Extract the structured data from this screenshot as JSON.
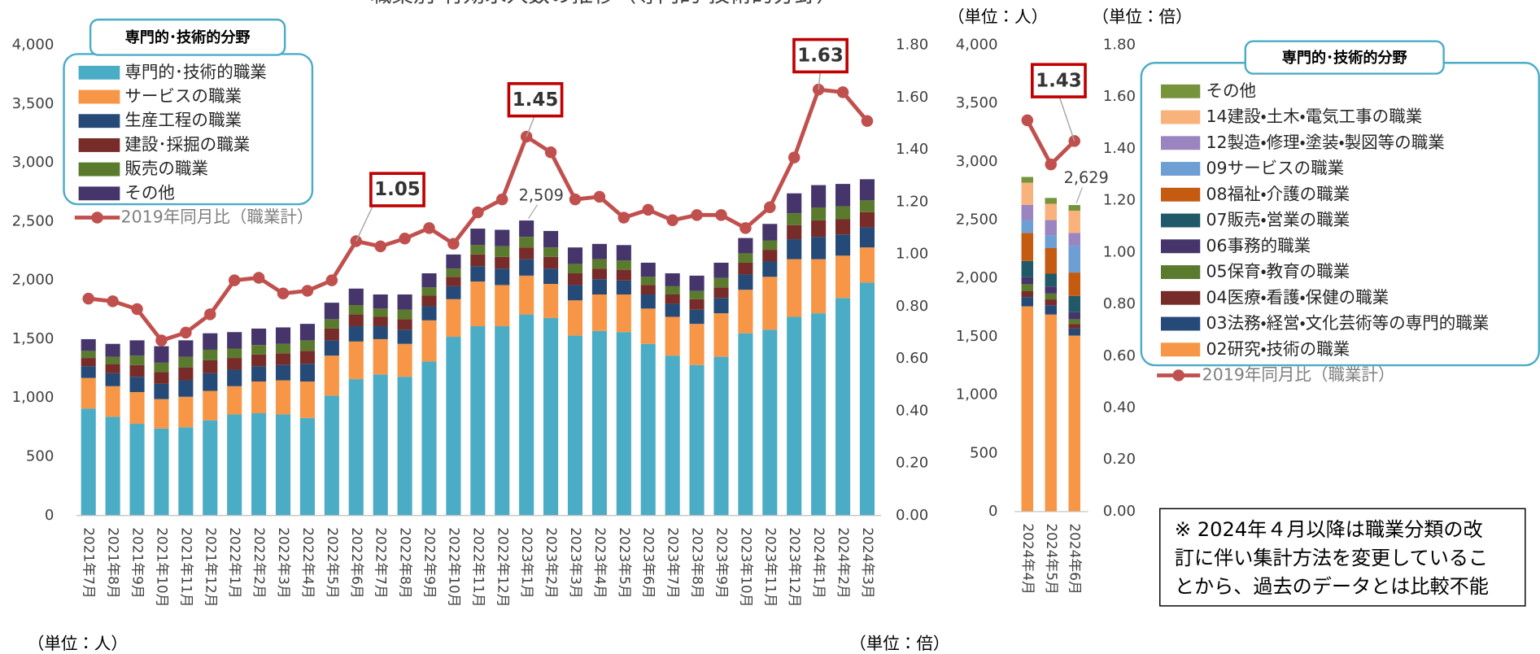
{
  "chart_data": [
    {
      "type": "bar",
      "stacked": true,
      "title": "職業別 有効求人数の推移（専門的・技術的分野）",
      "ylabel": "（単位：人）",
      "y2label": "（単位：倍）",
      "legend_title": "専門的･技術的分野",
      "categories": [
        "2021年7月",
        "2021年8月",
        "2021年9月",
        "2021年10月",
        "2021年11月",
        "2021年12月",
        "2022年1月",
        "2022年2月",
        "2022年3月",
        "2022年4月",
        "2022年5月",
        "2022年6月",
        "2022年7月",
        "2022年8月",
        "2022年9月",
        "2022年10月",
        "2022年11月",
        "2022年12月",
        "2023年1月",
        "2023年2月",
        "2023年3月",
        "2023年4月",
        "2023年5月",
        "2023年6月",
        "2023年7月",
        "2023年8月",
        "2023年9月",
        "2023年10月",
        "2023年11月",
        "2023年12月",
        "2024年1月",
        "2024年2月",
        "2024年3月"
      ],
      "series": [
        {
          "name": "専門的･技術的職業",
          "color": "#4bacc6",
          "values": [
            910,
            840,
            780,
            740,
            750,
            810,
            860,
            870,
            860,
            830,
            1020,
            1160,
            1200,
            1180,
            1310,
            1520,
            1610,
            1610,
            1710,
            1680,
            1530,
            1570,
            1560,
            1460,
            1360,
            1280,
            1350,
            1550,
            1580,
            1690,
            1720,
            1850,
            1980
          ]
        },
        {
          "name": "サービスの職業",
          "color": "#f79646",
          "values": [
            260,
            260,
            270,
            250,
            260,
            250,
            240,
            270,
            290,
            310,
            340,
            320,
            300,
            280,
            350,
            320,
            380,
            350,
            330,
            290,
            300,
            310,
            320,
            300,
            330,
            350,
            370,
            370,
            450,
            490,
            460,
            360,
            300
          ]
        },
        {
          "name": "生産工程の職業",
          "color": "#254a78",
          "values": [
            100,
            110,
            130,
            130,
            140,
            150,
            140,
            130,
            130,
            150,
            130,
            130,
            110,
            120,
            120,
            110,
            130,
            140,
            140,
            130,
            130,
            130,
            120,
            120,
            110,
            120,
            130,
            130,
            130,
            170,
            190,
            180,
            170
          ]
        },
        {
          "name": "建設･採掘の職業",
          "color": "#772c2a",
          "values": [
            70,
            80,
            100,
            100,
            110,
            110,
            100,
            100,
            100,
            110,
            100,
            100,
            80,
            90,
            90,
            80,
            100,
            100,
            100,
            100,
            100,
            90,
            90,
            80,
            80,
            90,
            90,
            100,
            100,
            120,
            140,
            130,
            130
          ]
        },
        {
          "name": "販売の職業",
          "color": "#5a7b2e",
          "values": [
            60,
            60,
            80,
            80,
            90,
            90,
            80,
            80,
            80,
            90,
            80,
            80,
            70,
            80,
            70,
            70,
            80,
            90,
            90,
            80,
            80,
            80,
            80,
            70,
            70,
            70,
            80,
            80,
            80,
            100,
            110,
            110,
            100
          ]
        },
        {
          "name": "その他",
          "color": "#46356a",
          "values": [
            100,
            110,
            130,
            140,
            140,
            140,
            140,
            140,
            140,
            140,
            140,
            140,
            120,
            130,
            120,
            120,
            140,
            140,
            139,
            140,
            140,
            130,
            130,
            120,
            110,
            130,
            130,
            130,
            140,
            170,
            190,
            190,
            180
          ]
        },
        {
          "name": "2019年同月比（職業計）",
          "type": "line",
          "axis": "y2",
          "color": "#c0504d",
          "values": [
            0.83,
            0.82,
            0.79,
            0.67,
            0.7,
            0.77,
            0.9,
            0.91,
            0.85,
            0.86,
            0.9,
            1.05,
            1.03,
            1.06,
            1.1,
            1.04,
            1.16,
            1.21,
            1.45,
            1.39,
            1.21,
            1.22,
            1.14,
            1.17,
            1.13,
            1.15,
            1.15,
            1.1,
            1.18,
            1.37,
            1.63,
            1.62,
            1.51
          ],
          "value_labels": [
            null,
            null,
            null,
            null,
            null,
            null,
            null,
            null,
            null,
            null,
            null,
            "1.05",
            null,
            null,
            null,
            null,
            null,
            null,
            "1.45",
            null,
            null,
            null,
            null,
            null,
            null,
            null,
            null,
            null,
            null,
            null,
            "1.63",
            null,
            null
          ]
        }
      ],
      "annotations": [
        {
          "category": "2023年1月",
          "label": "2,509",
          "value": 2509
        }
      ],
      "ylim": [
        0,
        4000
      ],
      "yticks": [
        0,
        {
          "value": 500,
          "label": "500"
        },
        {
          "value": 1000,
          "label": "1,000"
        },
        {
          "value": 1500,
          "label": "1,500"
        },
        {
          "value": 2000,
          "label": "2,000"
        },
        {
          "value": 2500,
          "label": "2,500"
        },
        {
          "value": 3000,
          "label": "3,000"
        },
        {
          "value": 3500,
          "label": "3,500"
        },
        {
          "value": 4000,
          "label": "4,000"
        }
      ],
      "y2lim": [
        0,
        1.8
      ],
      "y2ticks": [
        {
          "value": 0,
          "label": "0.00"
        },
        {
          "value": 0.2,
          "label": "0.20"
        },
        {
          "value": 0.4,
          "label": "0.40"
        },
        {
          "value": 0.6,
          "label": "0.60"
        },
        {
          "value": 0.8,
          "label": "0.80"
        },
        {
          "value": 1,
          "label": "1.00"
        },
        {
          "value": 1.2,
          "label": "1.20"
        },
        {
          "value": 1.4,
          "label": "1.40"
        },
        {
          "value": 1.6,
          "label": "1.60"
        },
        {
          "value": 1.8,
          "label": "1.80"
        }
      ],
      "grid": false,
      "legend_reversed": false
    },
    {
      "type": "bar",
      "stacked": true,
      "ylabel": "（単位：人）",
      "y2label": "（単位：倍）",
      "legend_title": "専門的･技術的分野",
      "categories": [
        "2024年4月",
        "2024年5月",
        "2024年6月"
      ],
      "series": [
        {
          "name": "02研究・技術の職業",
          "color": "#f79646",
          "values": [
            1760,
            1690,
            1510
          ]
        },
        {
          "name": "03法務・経営・文化芸術等の専門的職業",
          "color": "#254a78",
          "values": [
            80,
            80,
            60
          ]
        },
        {
          "name": "04医療・看護・保健の職業",
          "color": "#772c2a",
          "values": [
            50,
            50,
            40
          ]
        },
        {
          "name": "05保育・教育の職業",
          "color": "#5a7b2e",
          "values": [
            60,
            50,
            40
          ]
        },
        {
          "name": "06事務的職業",
          "color": "#46356a",
          "values": [
            60,
            60,
            60
          ]
        },
        {
          "name": "07販売・営業の職業",
          "color": "#215968",
          "values": [
            140,
            110,
            140
          ]
        },
        {
          "name": "08福祉・介護の職業",
          "color": "#c55a11",
          "values": [
            240,
            220,
            200
          ]
        },
        {
          "name": "09サービスの職業",
          "color": "#6d9ed4",
          "values": [
            110,
            110,
            230
          ]
        },
        {
          "name": "12製造・修理・塗装・製図等の職業",
          "color": "#9a85c0",
          "values": [
            130,
            130,
            110
          ]
        },
        {
          "name": "14建設・土木・電気工事の職業",
          "color": "#f9b27b",
          "values": [
            190,
            140,
            190
          ]
        },
        {
          "name": "その他",
          "color": "#77933c",
          "values": [
            50,
            50,
            49
          ]
        },
        {
          "name": "2019年同月比（職業計）",
          "type": "line",
          "axis": "y2",
          "color": "#c0504d",
          "values": [
            1.51,
            1.34,
            1.43
          ],
          "value_labels": [
            null,
            null,
            "1.43"
          ]
        }
      ],
      "annotations": [
        {
          "category": "2024年6月",
          "label": "2,629",
          "value": 2629
        }
      ],
      "ylim": [
        0,
        4000
      ],
      "yticks": [
        0,
        {
          "value": 500,
          "label": "500"
        },
        {
          "value": 1000,
          "label": "1,000"
        },
        {
          "value": 1500,
          "label": "1,500"
        },
        {
          "value": 2000,
          "label": "2,000"
        },
        {
          "value": 2500,
          "label": "2,500"
        },
        {
          "value": 3000,
          "label": "3,000"
        },
        {
          "value": 3500,
          "label": "3,500"
        },
        {
          "value": 4000,
          "label": "4,000"
        }
      ],
      "y2lim": [
        0,
        1.8
      ],
      "y2ticks": [
        {
          "value": 0,
          "label": "0.00"
        },
        {
          "value": 0.2,
          "label": "0.20"
        },
        {
          "value": 0.4,
          "label": "0.40"
        },
        {
          "value": 0.6,
          "label": "0.60"
        },
        {
          "value": 0.8,
          "label": "0.80"
        },
        {
          "value": 1,
          "label": "1.00"
        },
        {
          "value": 1.2,
          "label": "1.20"
        },
        {
          "value": 1.4,
          "label": "1.40"
        },
        {
          "value": 1.6,
          "label": "1.60"
        },
        {
          "value": 1.8,
          "label": "1.80"
        }
      ],
      "grid": false,
      "legend_reversed": true
    }
  ],
  "note": {
    "lines": [
      "※ 2024年４月以降は職業分類の改",
      "訂に伴い集計方法を変更しているこ",
      "とから、過去のデータとは比較不能"
    ]
  }
}
